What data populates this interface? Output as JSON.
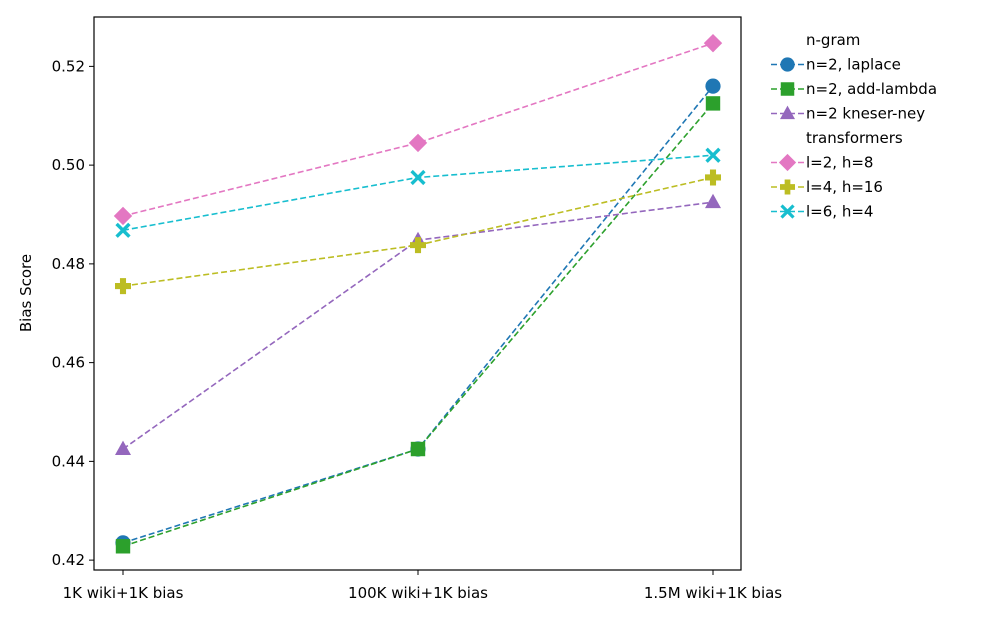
{
  "chart_data": {
    "type": "line",
    "ylabel": "Bias Score",
    "xlabel": "",
    "categories": [
      "1K wiki+1K bias",
      "100K wiki+1K bias",
      "1.5M wiki+1K bias"
    ],
    "ylim": [
      0.418,
      0.53
    ],
    "yticks": [
      0.42,
      0.44,
      0.46,
      0.48,
      0.5,
      0.52
    ],
    "ytick_labels": [
      "0.42",
      "0.44",
      "0.46",
      "0.48",
      "0.50",
      "0.52"
    ],
    "grid": false,
    "legend_position": "outside-right",
    "legend_groups": [
      {
        "title": "n-gram",
        "series": [
          0,
          1,
          2
        ]
      },
      {
        "title": "transformers",
        "series": [
          3,
          4,
          5
        ]
      }
    ],
    "series": [
      {
        "name": "n=2, laplace",
        "values": [
          0.4235,
          0.4425,
          0.516
        ],
        "color": "#1f77b4",
        "marker": "circle"
      },
      {
        "name": "n=2, add-lambda",
        "values": [
          0.4228,
          0.4425,
          0.5125
        ],
        "color": "#2ca02c",
        "marker": "square"
      },
      {
        "name": "n=2 kneser-ney",
        "values": [
          0.4425,
          0.4848,
          0.4925
        ],
        "color": "#9467bd",
        "marker": "triangle"
      },
      {
        "name": "l=2, h=8",
        "values": [
          0.4897,
          0.5045,
          0.5247
        ],
        "color": "#e377c2",
        "marker": "diamond"
      },
      {
        "name": "l=4, h=16",
        "values": [
          0.4755,
          0.4838,
          0.4975
        ],
        "color": "#bcbd22",
        "marker": "plus"
      },
      {
        "name": "l=6, h=4",
        "values": [
          0.4868,
          0.4975,
          0.502
        ],
        "color": "#17becf",
        "marker": "x"
      }
    ]
  }
}
